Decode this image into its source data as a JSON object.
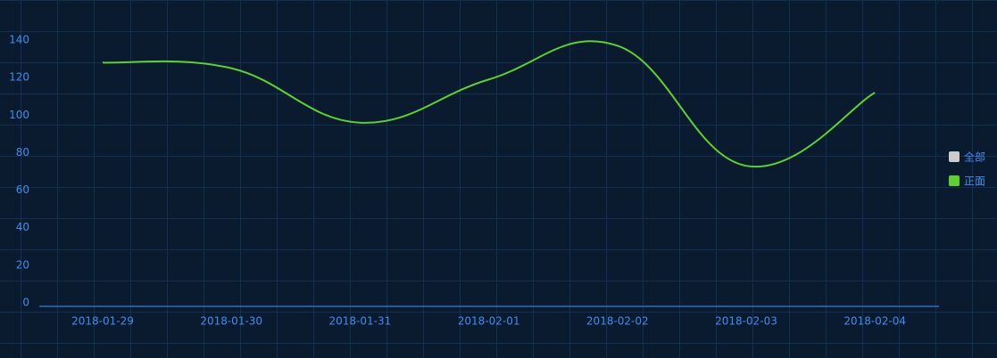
{
  "chart_data": {
    "type": "line",
    "x": [
      "2018-01-29",
      "2018-01-30",
      "2018-01-31",
      "2018-02-01",
      "2018-02-02",
      "2018-02-03",
      "2018-02-04"
    ],
    "series": [
      {
        "name": "全部",
        "color": "#cccccc",
        "values": [
          null,
          null,
          null,
          null,
          null,
          null,
          null
        ]
      },
      {
        "name": "正面",
        "color": "#5bd22f",
        "values": [
          128,
          125,
          96,
          119,
          137,
          73,
          112
        ]
      }
    ],
    "ylim": [
      0,
      140
    ],
    "yticks": [
      0,
      20,
      40,
      60,
      80,
      100,
      120,
      140
    ],
    "legend": "right"
  }
}
